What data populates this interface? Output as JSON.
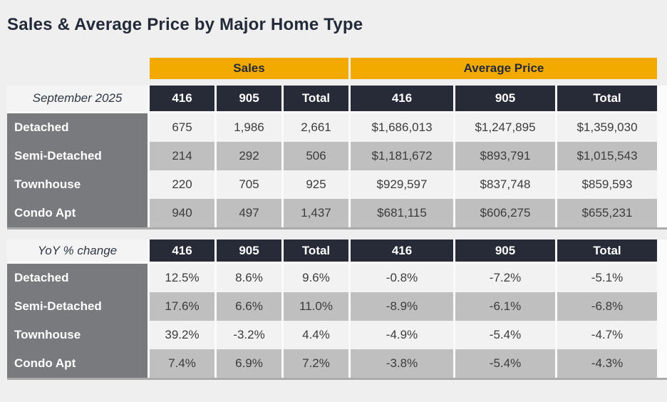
{
  "title": "Sales & Average Price by Major Home Type",
  "colors": {
    "accent_orange": "#F2A900",
    "header_dark": "#262B37",
    "label_gray": "#797A7E",
    "row_light": "#F2F2F2",
    "row_shade": "#BFBFBF",
    "page_background": "#EFEFEF",
    "title_text": "#232B3A"
  },
  "chart_data": {
    "type": "table",
    "title": "Sales & Average Price by Major Home Type",
    "column_groups": [
      "Sales",
      "Average Price"
    ],
    "sub_columns": [
      "416",
      "905",
      "Total"
    ],
    "tables": [
      {
        "period": "September 2025",
        "rows": [
          {
            "home_type": "Detached",
            "sales": [
              "675",
              "1,986",
              "2,661"
            ],
            "average_price": [
              "$1,686,013",
              "$1,247,895",
              "$1,359,030"
            ]
          },
          {
            "home_type": "Semi-Detached",
            "sales": [
              "214",
              "292",
              "506"
            ],
            "average_price": [
              "$1,181,672",
              "$893,791",
              "$1,015,543"
            ]
          },
          {
            "home_type": "Townhouse",
            "sales": [
              "220",
              "705",
              "925"
            ],
            "average_price": [
              "$929,597",
              "$837,748",
              "$859,593"
            ]
          },
          {
            "home_type": "Condo Apt",
            "sales": [
              "940",
              "497",
              "1,437"
            ],
            "average_price": [
              "$681,115",
              "$606,275",
              "$655,231"
            ]
          }
        ]
      },
      {
        "period": "YoY % change",
        "rows": [
          {
            "home_type": "Detached",
            "sales": [
              "12.5%",
              "8.6%",
              "9.6%"
            ],
            "average_price": [
              "-0.8%",
              "-7.2%",
              "-5.1%"
            ]
          },
          {
            "home_type": "Semi-Detached",
            "sales": [
              "17.6%",
              "6.6%",
              "11.0%"
            ],
            "average_price": [
              "-8.9%",
              "-6.1%",
              "-6.8%"
            ]
          },
          {
            "home_type": "Townhouse",
            "sales": [
              "39.2%",
              "-3.2%",
              "4.4%"
            ],
            "average_price": [
              "-4.9%",
              "-5.4%",
              "-4.7%"
            ]
          },
          {
            "home_type": "Condo Apt",
            "sales": [
              "7.4%",
              "6.9%",
              "7.2%"
            ],
            "average_price": [
              "-3.8%",
              "-5.4%",
              "-4.3%"
            ]
          }
        ]
      }
    ]
  }
}
